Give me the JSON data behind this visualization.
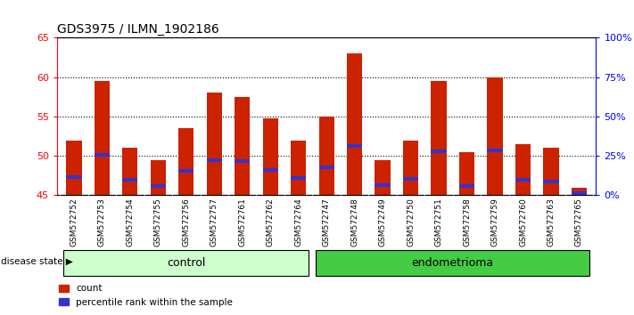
{
  "title": "GDS3975 / ILMN_1902186",
  "samples": [
    "GSM572752",
    "GSM572753",
    "GSM572754",
    "GSM572755",
    "GSM572756",
    "GSM572757",
    "GSM572761",
    "GSM572762",
    "GSM572764",
    "GSM572747",
    "GSM572748",
    "GSM572749",
    "GSM572750",
    "GSM572751",
    "GSM572758",
    "GSM572759",
    "GSM572760",
    "GSM572763",
    "GSM572765"
  ],
  "count_values": [
    52.0,
    59.5,
    51.0,
    49.5,
    53.5,
    58.0,
    57.5,
    54.8,
    52.0,
    55.0,
    63.0,
    49.5,
    52.0,
    59.5,
    50.5,
    60.0,
    51.5,
    51.0,
    46.0
  ],
  "percentile_values": [
    47.3,
    50.1,
    47.0,
    46.2,
    48.1,
    49.5,
    49.4,
    48.2,
    47.2,
    48.6,
    51.3,
    46.3,
    47.1,
    50.6,
    46.2,
    50.7,
    47.0,
    46.8,
    45.3
  ],
  "groups": [
    "control",
    "control",
    "control",
    "control",
    "control",
    "control",
    "control",
    "control",
    "control",
    "endometrioma",
    "endometrioma",
    "endometrioma",
    "endometrioma",
    "endometrioma",
    "endometrioma",
    "endometrioma",
    "endometrioma",
    "endometrioma",
    "endometrioma"
  ],
  "n_control": 9,
  "n_endo": 10,
  "ymin": 45,
  "ymax": 65,
  "yticks": [
    45,
    50,
    55,
    60,
    65
  ],
  "right_yticks": [
    0,
    25,
    50,
    75,
    100
  ],
  "bar_color": "#cc2200",
  "percentile_color": "#3333cc",
  "control_color": "#ccffcc",
  "endometrioma_color": "#44cc44",
  "sample_bg_color": "#cccccc",
  "bar_width": 0.55,
  "legend_count_label": "count",
  "legend_pct_label": "percentile rank within the sample",
  "disease_state_label": "disease state",
  "control_label": "control",
  "endometrioma_label": "endometrioma"
}
